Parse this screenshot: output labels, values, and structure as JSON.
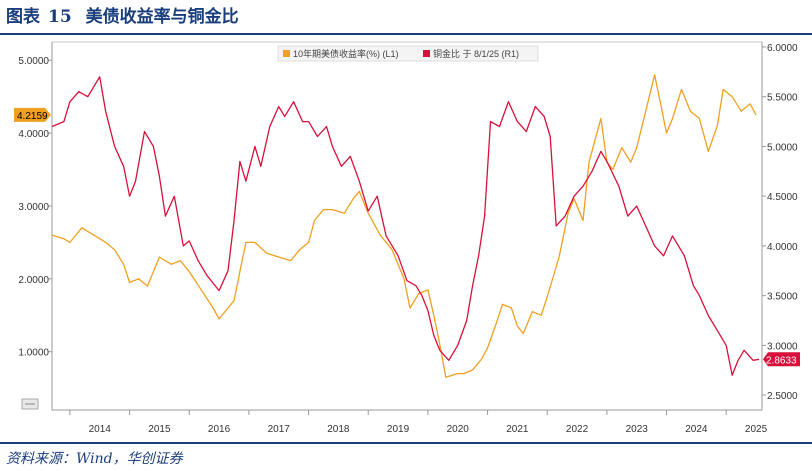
{
  "figure": {
    "label": "图表",
    "number": "15",
    "title": "美债收益率与铜金比",
    "source": "资料来源：Wind，华创证券"
  },
  "colors": {
    "yield": "#f0a020",
    "ratio": "#d8103c",
    "accent": "#1a3d7c"
  },
  "chart_data": {
    "type": "line",
    "title": "美债收益率与铜金比",
    "legend_position": "top-center",
    "grid": false,
    "x_ticks": [
      "2014",
      "2015",
      "2016",
      "2017",
      "2018",
      "2019",
      "2020",
      "2021",
      "2022",
      "2023",
      "2024",
      "2025"
    ],
    "x_range": [
      2013.7,
      2025.6
    ],
    "y_left": {
      "ticks": [
        "1.0000",
        "2.0000",
        "3.0000",
        "4.0000",
        "5.0000"
      ],
      "range": [
        0.2,
        5.25
      ]
    },
    "y_right": {
      "ticks": [
        "2.5000",
        "3.0000",
        "3.5000",
        "4.0000",
        "4.5000",
        "5.0000",
        "5.5000",
        "6.0000"
      ],
      "range": [
        2.35,
        6.05
      ]
    },
    "series": [
      {
        "name": "10年期美债收益率(%) (L1)",
        "axis": "left",
        "last_value_label": "4.2159",
        "x": [
          2013.7,
          2013.9,
          2014.0,
          2014.2,
          2014.4,
          2014.6,
          2014.75,
          2014.9,
          2015.0,
          2015.15,
          2015.3,
          2015.5,
          2015.7,
          2015.85,
          2016.0,
          2016.2,
          2016.4,
          2016.5,
          2016.6,
          2016.75,
          2016.85,
          2016.95,
          2017.1,
          2017.3,
          2017.5,
          2017.7,
          2017.85,
          2018.0,
          2018.1,
          2018.25,
          2018.4,
          2018.6,
          2018.75,
          2018.85,
          2019.0,
          2019.2,
          2019.4,
          2019.6,
          2019.7,
          2019.85,
          2020.0,
          2020.1,
          2020.2,
          2020.3,
          2020.5,
          2020.6,
          2020.75,
          2020.9,
          2021.0,
          2021.15,
          2021.25,
          2021.4,
          2021.5,
          2021.6,
          2021.75,
          2021.9,
          2022.0,
          2022.2,
          2022.35,
          2022.45,
          2022.6,
          2022.7,
          2022.8,
          2022.9,
          2023.0,
          2023.1,
          2023.25,
          2023.4,
          2023.5,
          2023.65,
          2023.8,
          2023.9,
          2024.0,
          2024.1,
          2024.25,
          2024.4,
          2024.55,
          2024.7,
          2024.85,
          2024.95,
          2025.1,
          2025.25,
          2025.4,
          2025.5
        ],
        "values": [
          2.6,
          2.55,
          2.5,
          2.7,
          2.6,
          2.5,
          2.4,
          2.2,
          1.95,
          2.0,
          1.9,
          2.3,
          2.2,
          2.25,
          2.1,
          1.85,
          1.6,
          1.45,
          1.55,
          1.7,
          2.1,
          2.5,
          2.5,
          2.35,
          2.3,
          2.25,
          2.4,
          2.5,
          2.8,
          2.95,
          2.95,
          2.9,
          3.1,
          3.2,
          2.9,
          2.6,
          2.4,
          2.0,
          1.6,
          1.8,
          1.85,
          1.5,
          1.1,
          0.65,
          0.7,
          0.7,
          0.75,
          0.9,
          1.05,
          1.4,
          1.65,
          1.6,
          1.35,
          1.25,
          1.55,
          1.5,
          1.75,
          2.3,
          2.9,
          3.1,
          2.8,
          3.6,
          3.9,
          4.2,
          3.6,
          3.5,
          3.8,
          3.6,
          3.8,
          4.3,
          4.8,
          4.4,
          4.0,
          4.2,
          4.6,
          4.3,
          4.2,
          3.75,
          4.1,
          4.6,
          4.5,
          4.3,
          4.4,
          4.25
        ]
      },
      {
        "name": "铜金比  于 8/1/25 (R1)",
        "axis": "right",
        "last_value_label": "2.8633",
        "x": [
          2013.7,
          2013.9,
          2014.0,
          2014.15,
          2014.3,
          2014.5,
          2014.6,
          2014.75,
          2014.9,
          2015.0,
          2015.1,
          2015.25,
          2015.4,
          2015.5,
          2015.6,
          2015.75,
          2015.9,
          2016.0,
          2016.15,
          2016.3,
          2016.5,
          2016.65,
          2016.75,
          2016.85,
          2016.95,
          2017.1,
          2017.2,
          2017.35,
          2017.5,
          2017.6,
          2017.75,
          2017.9,
          2018.0,
          2018.15,
          2018.3,
          2018.4,
          2018.55,
          2018.7,
          2018.85,
          2019.0,
          2019.15,
          2019.3,
          2019.5,
          2019.65,
          2019.8,
          2019.9,
          2020.0,
          2020.1,
          2020.2,
          2020.35,
          2020.5,
          2020.65,
          2020.75,
          2020.85,
          2020.95,
          2021.05,
          2021.2,
          2021.35,
          2021.5,
          2021.65,
          2021.8,
          2021.95,
          2022.05,
          2022.15,
          2022.3,
          2022.45,
          2022.6,
          2022.75,
          2022.9,
          2023.0,
          2023.2,
          2023.35,
          2023.5,
          2023.65,
          2023.8,
          2023.95,
          2024.1,
          2024.3,
          2024.45,
          2024.55,
          2024.7,
          2024.85,
          2025.0,
          2025.1,
          2025.2,
          2025.3,
          2025.45,
          2025.55
        ],
        "values": [
          5.2,
          5.25,
          5.45,
          5.55,
          5.5,
          5.7,
          5.35,
          5.0,
          4.8,
          4.5,
          4.65,
          5.15,
          5.0,
          4.7,
          4.3,
          4.5,
          4.0,
          4.05,
          3.85,
          3.7,
          3.55,
          3.75,
          4.25,
          4.85,
          4.65,
          5.0,
          4.8,
          5.2,
          5.4,
          5.3,
          5.45,
          5.25,
          5.25,
          5.1,
          5.2,
          5.0,
          4.8,
          4.9,
          4.65,
          4.35,
          4.5,
          4.1,
          3.9,
          3.65,
          3.6,
          3.5,
          3.35,
          3.1,
          2.95,
          2.85,
          3.0,
          3.25,
          3.6,
          3.9,
          4.3,
          5.25,
          5.2,
          5.45,
          5.25,
          5.15,
          5.4,
          5.3,
          5.1,
          4.2,
          4.3,
          4.5,
          4.6,
          4.75,
          4.95,
          4.85,
          4.6,
          4.3,
          4.4,
          4.2,
          4.0,
          3.9,
          4.1,
          3.9,
          3.6,
          3.5,
          3.3,
          3.15,
          3.0,
          2.7,
          2.85,
          2.95,
          2.85,
          2.86
        ]
      }
    ]
  }
}
